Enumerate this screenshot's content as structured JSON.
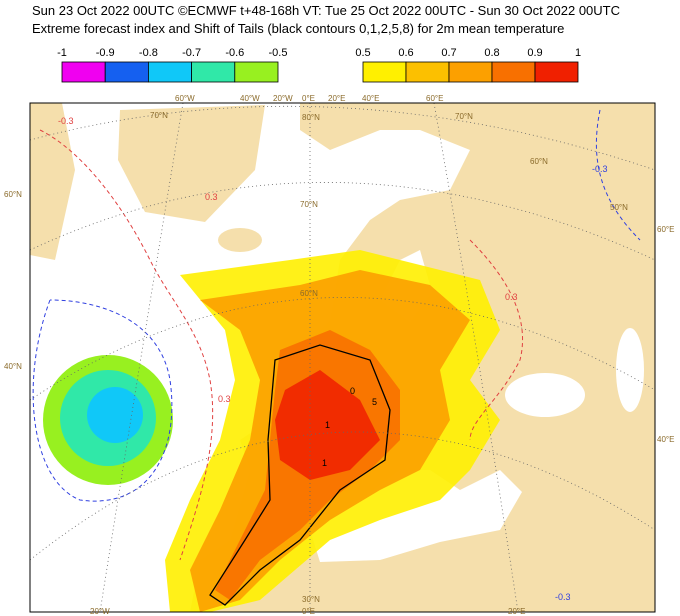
{
  "header": {
    "line1": "Sun 23 Oct 2022 00UTC ©ECMWF t+48-168h  VT: Tue 25 Oct 2022 00UTC - Sun 30 Oct 2022 00UTC",
    "line2": "Extreme forecast index and Shift of Tails (black contours 0,1,2,5,8) for 2m mean temperature"
  },
  "legend": {
    "negative": {
      "labels": [
        "-1",
        "-0.9",
        "-0.8",
        "-0.7",
        "-0.6",
        "-0.5"
      ],
      "colors": [
        "#f000f0",
        "#1560f0",
        "#10c8f8",
        "#30e8a8",
        "#98f020"
      ]
    },
    "positive": {
      "labels": [
        "0.5",
        "0.6",
        "0.7",
        "0.8",
        "0.9",
        "1"
      ],
      "colors": [
        "#fff000",
        "#fcc000",
        "#fca000",
        "#f87000",
        "#f02000"
      ]
    }
  },
  "map": {
    "longitude_labels": [
      "60°W",
      "40°W",
      "20°W",
      "0°E",
      "20°E",
      "40°E",
      "60°E",
      "20°W",
      "0°E",
      "20°E"
    ],
    "latitude_labels": [
      "70°N",
      "80°N",
      "70°N",
      "60°N",
      "50°N",
      "70°N",
      "60°N",
      "60°N",
      "40°N",
      "60°E",
      "40°E",
      "30°N"
    ],
    "contour_labels": [
      "-0.3",
      "0.3",
      "-0.3",
      "0.3",
      "0.3",
      "-0.3",
      "1",
      "1",
      "0",
      "5"
    ]
  }
}
